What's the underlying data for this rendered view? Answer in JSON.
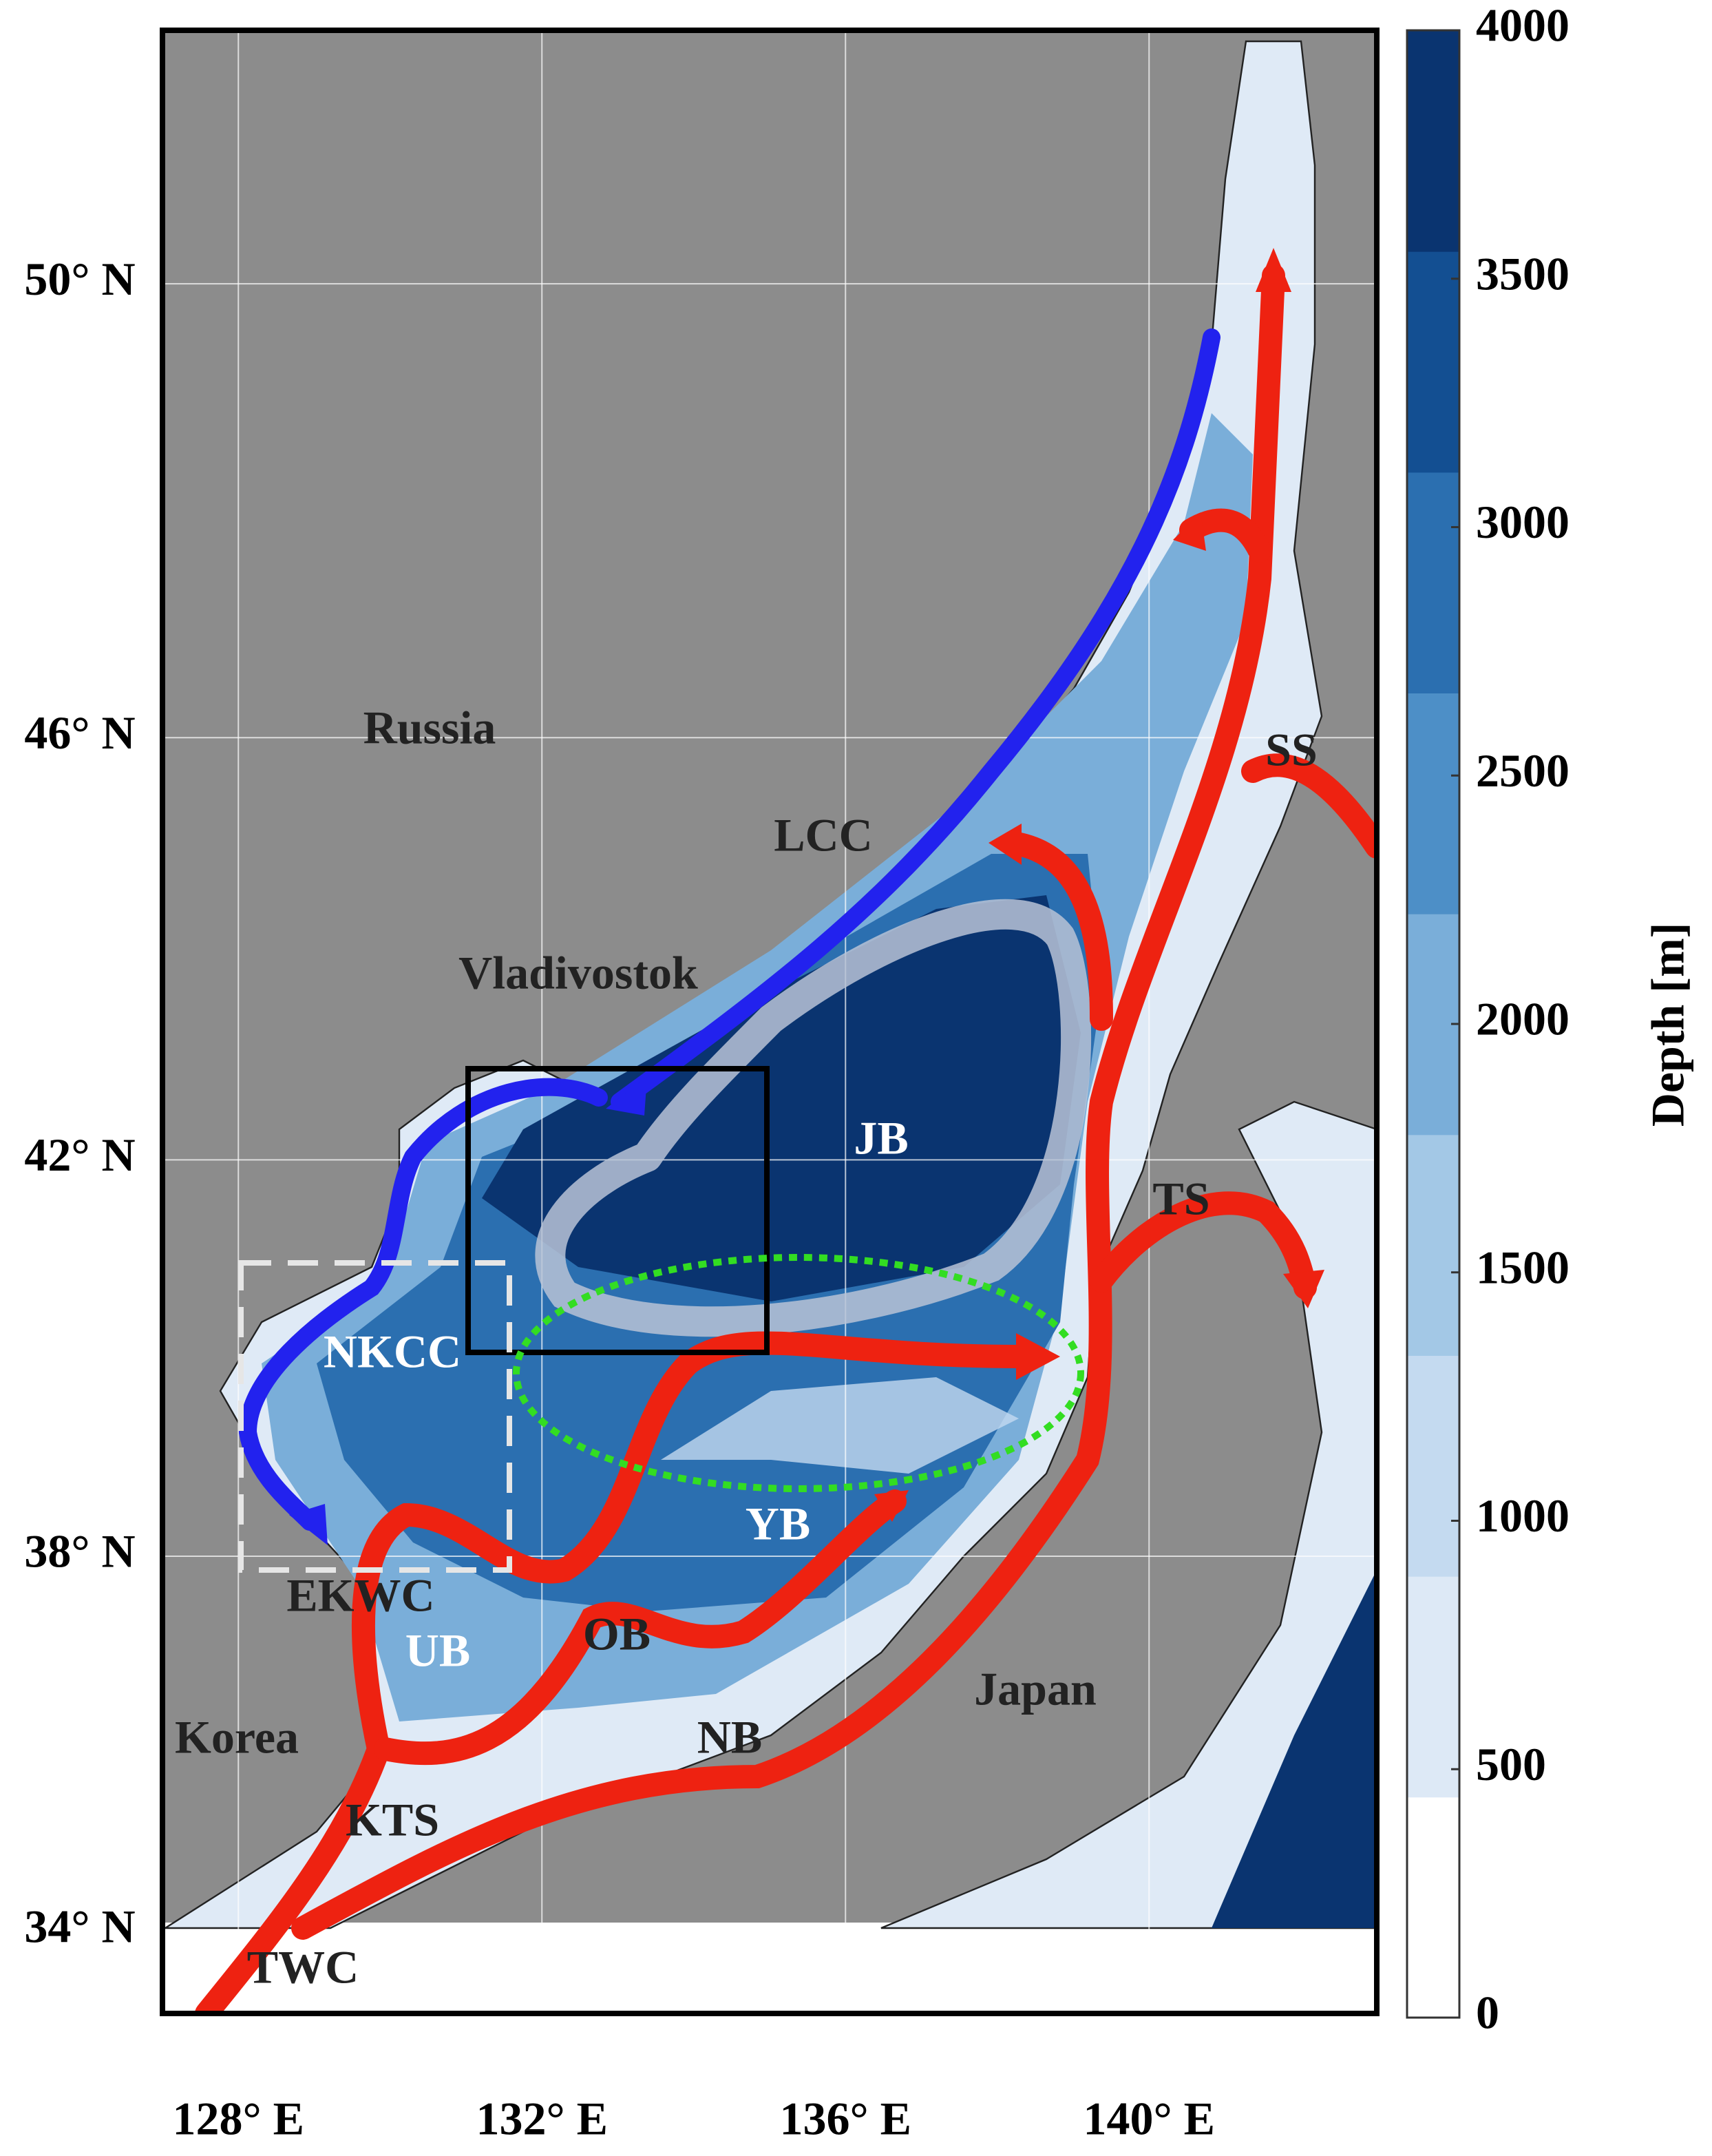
{
  "map": {
    "xlim": [
      127,
      143
    ],
    "ylim": [
      33.1,
      52.1
    ],
    "xticks": [
      {
        "value": 128,
        "label": "128° E"
      },
      {
        "value": 132,
        "label": "132° E"
      },
      {
        "value": 136,
        "label": "136° E"
      },
      {
        "value": 140,
        "label": "140° E"
      }
    ],
    "yticks": [
      {
        "value": 34,
        "label": "34° N"
      },
      {
        "value": 38,
        "label": "38° N"
      },
      {
        "value": 42,
        "label": "42° N"
      },
      {
        "value": 46,
        "label": "46° N"
      },
      {
        "value": 50,
        "label": "50° N"
      }
    ],
    "grid": true,
    "places": [
      "Russia",
      "Vladivostok",
      "Korea",
      "Japan"
    ],
    "features": [
      "LCC",
      "JB",
      "NKCC",
      "EKWC",
      "UB",
      "OB",
      "YB",
      "NB",
      "KTS",
      "TWC",
      "SS",
      "TS"
    ]
  },
  "colorbar": {
    "label": "Depth [m]",
    "lim": [
      0,
      4000
    ],
    "ticks": [
      0,
      500,
      1000,
      1500,
      2000,
      2500,
      3000,
      3500,
      4000
    ],
    "colors": [
      "#ffffff",
      "#dde9f6",
      "#c4daf0",
      "#a3c8e6",
      "#7aaed9",
      "#4d8fc7",
      "#2b6fb0",
      "#134f92",
      "#0a3470"
    ]
  }
}
